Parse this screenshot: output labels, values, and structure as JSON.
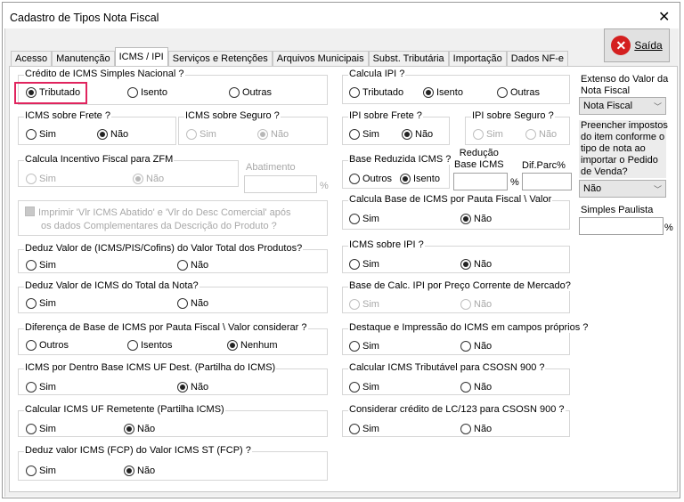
{
  "window": {
    "title": "Cadastro de Tipos Nota Fiscal",
    "close_icon": "close-icon"
  },
  "exit_button": {
    "label": "Saída",
    "icon": "red-x-circle-icon"
  },
  "tabs": [
    {
      "label": "Acesso",
      "active": false
    },
    {
      "label": "Manutenção",
      "active": false
    },
    {
      "label": "ICMS / IPI",
      "active": true
    },
    {
      "label": "Serviços e Retenções",
      "active": false
    },
    {
      "label": "Arquivos Municipais",
      "active": false
    },
    {
      "label": "Subst. Tributária",
      "active": false
    },
    {
      "label": "Importação",
      "active": false
    },
    {
      "label": "Dados NF-e",
      "active": false
    }
  ],
  "groups": [
    {
      "id": "credito-icms-simples",
      "title": "Crédito de ICMS Simples Nacional ?",
      "options": [
        "Tributado",
        "Isento",
        "Outras"
      ],
      "selected": 0,
      "disabled": false
    },
    {
      "id": "icms-frete",
      "title": "ICMS sobre Frete ?",
      "options": [
        "Sim",
        "Não"
      ],
      "selected": 1,
      "disabled": false
    },
    {
      "id": "icms-seguro",
      "title": "ICMS sobre Seguro ?",
      "options": [
        "Sim",
        "Não"
      ],
      "selected": 1,
      "disabled": true
    },
    {
      "id": "incentivo-zfm",
      "title": "Calcula Incentivo Fiscal para ZFM",
      "options": [
        "Sim",
        "Não"
      ],
      "selected": 1,
      "disabled": true
    },
    {
      "id": "deduz-pis-cofins",
      "title": "Deduz Valor de (ICMS/PIS/Cofins) do Valor Total dos Produtos?",
      "options": [
        "Sim",
        "Não"
      ],
      "selected": null,
      "disabled": false
    },
    {
      "id": "deduz-icms-total",
      "title": "Deduz Valor de ICMS do Total da Nota?",
      "options": [
        "Sim",
        "Não"
      ],
      "selected": null,
      "disabled": false
    },
    {
      "id": "diferenca-base",
      "title": "Diferença de Base de ICMS por Pauta Fiscal \\ Valor considerar ?",
      "options": [
        "Outros",
        "Isentos",
        "Nenhum"
      ],
      "selected": 2,
      "disabled": false
    },
    {
      "id": "icms-por-dentro",
      "title": "ICMS por Dentro Base ICMS UF Dest. (Partilha do ICMS)",
      "options": [
        "Sim",
        "Não"
      ],
      "selected": 1,
      "disabled": false
    },
    {
      "id": "icms-uf-remetente",
      "title": "Calcular ICMS UF Remetente (Partilha ICMS)",
      "options": [
        "Sim",
        "Não"
      ],
      "selected": 1,
      "disabled": false
    },
    {
      "id": "deduz-fcp",
      "title": "Deduz valor ICMS (FCP) do Valor ICMS ST (FCP) ?",
      "options": [
        "Sim",
        "Não"
      ],
      "selected": 1,
      "disabled": false
    },
    {
      "id": "calcula-ipi",
      "title": "Calcula IPI ?",
      "options": [
        "Tributado",
        "Isento",
        "Outras"
      ],
      "selected": 1,
      "disabled": false
    },
    {
      "id": "ipi-frete",
      "title": "IPI sobre Frete ?",
      "options": [
        "Sim",
        "Não"
      ],
      "selected": 1,
      "disabled": false
    },
    {
      "id": "ipi-seguro",
      "title": "IPI sobre Seguro ?",
      "options": [
        "Sim",
        "Não"
      ],
      "selected": null,
      "disabled": true
    },
    {
      "id": "base-reduzida",
      "title": "Base Reduzida ICMS ?",
      "options": [
        "Outros",
        "Isento"
      ],
      "selected": 1,
      "disabled": false
    },
    {
      "id": "base-pauta",
      "title": "Calcula Base de ICMS por Pauta Fiscal \\ Valor",
      "options": [
        "Sim",
        "Não"
      ],
      "selected": 1,
      "disabled": false
    },
    {
      "id": "icms-sobre-ipi",
      "title": "ICMS sobre IPI ?",
      "options": [
        "Sim",
        "Não"
      ],
      "selected": 1,
      "disabled": false
    },
    {
      "id": "base-ipi-preco",
      "title": "Base de Calc. IPI por Preço  Corrente de Mercado?",
      "options": [
        "Sim",
        "Não"
      ],
      "selected": null,
      "disabled": true
    },
    {
      "id": "destaque-icms",
      "title": "Destaque e Impressão do ICMS em campos próprios ?",
      "options": [
        "Sim",
        "Não"
      ],
      "selected": null,
      "disabled": false
    },
    {
      "id": "icms-csosn-900",
      "title": "Calcular ICMS Tributável para CSOSN 900 ?",
      "options": [
        "Sim",
        "Não"
      ],
      "selected": null,
      "disabled": false
    },
    {
      "id": "credito-lc123",
      "title": "Considerar crédito de LC/123 para CSOSN 900 ?",
      "options": [
        "Sim",
        "Não"
      ],
      "selected": null,
      "disabled": false
    }
  ],
  "abatimento": {
    "label": "Abatimento",
    "value": "",
    "unit": "%"
  },
  "imprimir_checkbox": {
    "line1": "Imprimir 'Vlr  ICMS Abatido' e 'Vlr do Desc Comercial' após",
    "line2": "os dados Complementares da Descrição do Produto ?",
    "checked": true,
    "disabled": true
  },
  "reducao": {
    "label1": "Redução",
    "label2": "Base ICMS",
    "value": "",
    "unit": "%"
  },
  "dif_parc": {
    "label": "Dif.Parc%",
    "value": ""
  },
  "extenso": {
    "label1": "Extenso do Valor da",
    "label2": "Nota Fiscal",
    "value": "Nota Fiscal"
  },
  "preencher": {
    "lines": [
      "Preencher impostos",
      "do item conforme o",
      "tipo de nota ao",
      "importar o Pedido",
      "de Venda?"
    ],
    "value": "Não"
  },
  "simples_paulista": {
    "label": "Simples Paulista",
    "value": "",
    "unit": "%"
  }
}
